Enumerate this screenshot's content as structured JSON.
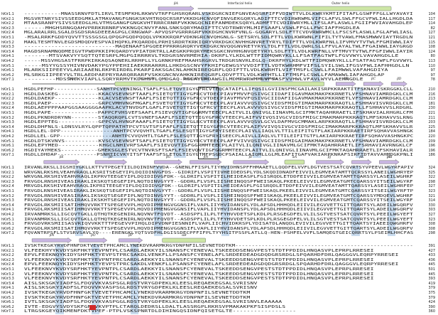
{
  "rows": [
    "hKir1.1",
    "hKir2.1",
    "hKir2.2",
    "hKir2.3",
    "hKir2.4",
    "hKir3.1",
    "hKir3.2",
    "hKir3.3",
    "hKir3.4",
    "hKir4.1",
    "hKir4.2",
    "hKir5.1",
    "hKir6.1",
    "hKir6.2",
    "hKir7.1"
  ],
  "colors": {
    "helix": "#cde6a6",
    "strand": "#c9b6e2",
    "shade": "#c9dcef",
    "mark": "#d22a2a"
  },
  "blocks": [
    {
      "ss_labels": [
        {
          "text": "βA",
          "kind": "strand"
        },
        {
          "text": "Interfacial helix",
          "kind": "title"
        },
        {
          "text": "Outer helix",
          "kind": "title"
        }
      ],
      "seqs": [
        "-----------MNASSRNVFDTLIRVLTESMFKHLRKWVVTRFFGHSRQRARLVSKDGRCNIEFGNVEAQSRFIFFVDIWTTVLDLKWRYKMTIFITAFLGSWFFFGLLWYAVAYI",
        "MGSVRTNRYSIVSSEEDGMKLATMAVANGFGNGKSKVHTRQQCRSRFVKKDGHCNVQFINVGEKGQRYLADIFTTCVDIRWRWMLVIFCLAFVLSWLFFGCVFWLIALLHGDLDA",
        "MTAASRANPYSIVSSEEDGLHLVTMSGANGFGNGKVHTRRRCRNRFVKKNGQCNIEFANMDEKSQRYLADMFTTCVDIRWRYMLLIFSLAFLASWLLFGIIFWVIAVAHGDLEP",
        "------MHGHSRNGQAHVPRRKRRNRFVKKNGQCNVYFANLSNKSQRYMADIFTTCVDTRWRYMLMIFSAAFLVSWLFFGLLFWCIAFFHGDLEA",
        "MGLARALRRLSGALDSGDSRAGDEEEAGPGLCRNGWAP-APVQSPVGRRRGRFVKKDGHCNVRFVNLG-GQGARYLSDLFTTCVDVRWRWMCLLFSCSFLASWLLFGLAFWLIASL",
        "-MSALRRKFGDDYQVVTTSSSGSGLQPQGPGQDPQQQLVPKKKRQRFVDKNGRCNVQHGNLG-SETSRYLSDLFTTLVDLKWRWNLFIFILTYTVAWLFMASMWWVIAYTRGDLN",
        "MAKLTESMTNVLEGDSMDQDVESPVAIHQPKLPKQARDDLPRHISRDRTKRKIQRYVRKDGKCNVHHGNVRETYRYLTDIFTTLVDLKWRFNLLIFVMVYTVTWLFFGMIWWLIAY",
        "---------------------------MAQENAAFSPGQEEPPRRRGRQRYVEKDGRCNVQQGNVRETYRYLTDLFTTLVDLQWRLSLLFFVLAYALTWLFFGAIWWLIAYGRGD",
        "MAGDSRNAMNQDMEIGVTPWDPKKIPKQARDYVPIATDRTRLLAEGKKPRQRYMEKSGKCNVHHGNVQETYRYLSDLFTTLVDLKWRFNLLVFTMVYTVTWLFFGFIWWLIAYIR",
        "-------MTSVAKVYYSQTTQTESRPLMGPGIRRRRVLTKDGRSNVRMEHIA-DKRFLYLKDLWTTFIDMQWRYKLLLFSATFAGTWFLFGVVWYLVAVAHGDLLE",
        "-----MSSVHGSASTFRRPKIRKAQSAQNERLRRHPLLYLGRNKPREFMAAHSRGRVLTRDGRSNVRLEGLQ-DKRFHYLKDLWTTFIDMQWRYKLLLFSATFAGTWFLFGVVWYL",
        "-----MSYYGSSYHIVNVDAKYPGYPPEHIIAEKRRARRRLLHKDGSCNVYFKHIFGEWGSYVVDIFTTLVDTKWRHMFVIFSLSYILSWLIFGSVFWLIAFHHGDLLN",
        "MLARKSIIPEEYVLARIAAENLRKPRIRDRLPKARFIAKSGACNLAHKNIREQGRFLQDIFTTLVDLKWRHTLVIFTMSFLCSWLLFAIMWWLVAFAHGDIYA",
        "MLSRKGIIPEEYVLTRLAEDPAEPRYRARQRRARFVSKKGNCNVAHKNIREQGRFLQDVFTTLVDLKWPHTLLIFTMSFLCSWLLFAMAWWLIAFAHGDLAP",
        "---------MDSSNCKVIAPLLSQRYRRMVTKDGHSTLQMDGAQ-RGLAYLRDAWGILMDMRWRWMMLVFSASFVVHWLVFAVLWYVLAEMNGDLE"
      ],
      "nums": [
        "104",
        "117",
        "114",
        "82",
        "127",
        "121",
        "115",
        "108",
        "124",
        "80",
        "113",
        "110",
        "97",
        "97",
        "78"
      ],
      "shade_cols": [
        [
          0.45,
          0.47
        ],
        [
          0.6,
          0.62
        ],
        [
          0.66,
          0.68
        ],
        [
          0.73,
          0.75
        ]
      ],
      "selbox": null,
      "strands": [
        [
          0.34,
          0.43
        ]
      ],
      "helices": [
        [
          0.68,
          0.93
        ]
      ],
      "line_regions": [
        [
          0.44,
          0.67
        ]
      ],
      "red_mark": null
    },
    {
      "ss_labels": [
        {
          "text": "Turret",
          "kind": "title"
        },
        {
          "text": "Pore helix",
          "kind": "title"
        },
        {
          "text": "Selectivity filter",
          "kind": "title"
        },
        {
          "text": "Inner helix",
          "kind": "title"
        },
        {
          "text": "βB",
          "kind": "strand"
        },
        {
          "text": "βC",
          "kind": "strand"
        },
        {
          "text": "βD",
          "kind": "strand"
        }
      ],
      "seqs": [
        "HGDLPEFHP-------------SANHTPCVENINGLTSAFLFSLETQVTIGYGFRCVTEQCATAIFLLIFQSILGVIINSFMCGAILAKISRPKKRAKTITFSKNAVISKRGGKLCLL",
        "HGDLDASKEG------------KKACVSEVNSFTAAFLFSIETQTTIGYGFRCVTDECPIAVFMVVFQSIVGCIIDAFIIGAVMAKMAKPKKRNETLVFSHNAVIAMRDGKLCLM",
        "HGDLDAEKP-------------KLACVSEVNSFTAAFLFSIETQTTIGYGFRCVTDECPIAVFMVVFQSIVGCIIDAFIIGAVMAKMAKPKKRNETLVFSHNAVIAMRDGKLCLM",
        "HGDLPAEP--------------GRPCVMHVNGFMGAFLFSVETQTTIGYGFRCVTEECPLAVIAVVVQSIVGCVIDSFMIGTIMAKMARPKKRAQTLLFSHHAVISVRDGKLCLM",
        "HGDLAEPPPPAAPGGSAAGGGGAAPKLACVTNVDGFLGAFLFSVETQTTIGYGFRCVTEECPLAVLAVVVQSIVGCVIDSFMIGTIMAKMARPKKRAQTLLFSHHAVVSLRDGRL",
        "HGDLPAPE--------------PAPPCFVHSVEFSAAFLFSIEVQVTIGFGGRMVTEECPLAITVLILQNIVGLIINAVMLGCIFMKTAQAHRRAETLIFSKHAVIALRHGRLCFM",
        "HGDLPKNDRDRYNN--------STAQQRQPLCVTSVNEFSAAFLFSIETQTTIGYGFRCVTEECPLAIFVVIVQSIVGCVIDSFMIGCIMAKMARPKKRAQTLMFSKHAVVSLRNG",
        "HGDLEPPTEG------------GPPCVLHVNGFAAAFLFSIETQTTIGYGLRCVTEECPLAVLAVVVQSVLGCVLDAFMVGCMMAKLARPKKRAQTLLFSHHAVISVRDGKLCLM",
        "HGDLDHFNLS-LDNSVLRYLQPPTQPPATHTPCVTSVTSFSFAFLFSIETQTTIGYGFRCVTEECPLAIFVVIVQSIVGCVIDSFMIGCIMAKMARPKKRAQTLMFSKHAVVSLR",
        "HGDLLEL-DPP----------------ANHTPCVVQVHTLTGAFLFSLESQTTIGYGFRYISEECPLAIVLLIAQLVLTTILEIFITGTFLAKIARPKKRAETIRFSQHAVVASHNGK",
        "HGDLLEL-GPP----------------ANHTPCVVQVHTLTGAFLFSLESQTTIGYGFRYISEECPLAIVLLIAQLVLTTILEIFITGTFLAKIARPKKRAETIRFSQHAVVASHNGKPC",
        "HGDLDTSKVNVS----------KVSCVSEVNSFTSAFLFSIETQTTIGYGYRCVTEECPLAFFVIVVQSIVGCIIDSFMIGAIMAKMAKPKKRNETLVFSHNAVIAMRDGKLCLM",
        "HGDLEPYMED------------KHGCLNHIVRFSAAFLFSIEVQVTIGFGGRMMTEECPLAITVLILQNIVGLIINAVMLGCIFMKTAQAHRRAETLIFSRHAVIAVRNGKLCF",
        "HGDIYAYMEKS-----------GMEKSGLESTVCVTNVRSFTSAFLFSIEVQVTIGFGGRMMTEECPLAITVLILQNIVGLIINAVMLGCIFMKTAQAHRRAETLIFSKHAVIALR",
        "HGDLLDHDAP------------PSNHTICVKYITSFTAAFSFSLETQLTIGYGTMFPSGDCPSAIALLAIQMLLGLMLEAFITGAFVAKIARPKNRAFSIRFTDTAVVAHMDGKPNLI"
      ],
      "nums": [
        "210",
        "216",
        "213",
        "181",
        "230",
        "221",
        "211",
        "203",
        "225",
        "184",
        "220",
        "209",
        "196",
        "196",
        "186"
      ],
      "shade_cols": [
        [
          0.2,
          0.26
        ],
        [
          0.38,
          0.41
        ],
        [
          0.48,
          0.5
        ],
        [
          0.58,
          0.6
        ],
        [
          0.84,
          0.86
        ]
      ],
      "selbox": [
        0.44,
        0.49
      ],
      "strands": [
        [
          0.79,
          0.84
        ],
        [
          0.86,
          0.91
        ],
        [
          0.93,
          0.97
        ]
      ],
      "helices": [
        [
          0.23,
          0.4
        ],
        [
          0.49,
          0.76
        ]
      ],
      "line_regions": [
        [
          0.02,
          0.23
        ],
        [
          0.4,
          0.49
        ]
      ],
      "red_mark": null
    },
    {
      "ss_labels": [
        {
          "text": "βE",
          "kind": "strand"
        },
        {
          "text": "βF",
          "kind": "strand"
        },
        {
          "text": "βG",
          "kind": "strand"
        },
        {
          "text": "βH",
          "kind": "strand"
        },
        {
          "text": "βI",
          "kind": "strand"
        },
        {
          "text": "αA",
          "kind": "helix"
        },
        {
          "text": "βJ",
          "kind": "strand"
        },
        {
          "text": "βK",
          "kind": "strand"
        },
        {
          "text": "βL",
          "kind": "strand"
        },
        {
          "text": "βM",
          "kind": "strand"
        }
      ],
      "seqs": [
        "IRVANLRKSLLIGSHIYGKLLKTTVTPEGETIILDQININFVVDA--GNENLFFISPLTIYHVIDHNSPFFHMAAETLLQQDFELVVFLDGTVESTSATCQVRTSYVPEEVLWGYRFAPIV",
        "WRVGNLRKSHLVEAHVRAQLLKSRITSEGEYIPLDQIDINVGFDS--GIDRIFLVSPITIVHEIDEDSPLYDLSKQDIDNADFEIVVILEGMVEATAMTTQCRSSYLANEILWGHRYEP",
        "WRVGNLRKSHIVEAHVRAQLIKPRVTEEGEYIPLDQIDIDVGFDK--GLDRIFLVSPITILHEIDEASPLFGISRQDLETDDFEIVVILEGMVEATAMTTQARSSYLASEILWGHRF",
        "FRVGDLRNSHIVEASIRAKLIKSKQTSEGEFIPLNQTDINVGYYT--GDDRLFLVSPLIISHEINQQSPFWEISKAQLPKEELEIVVILEGMVEATGMTCQARSSYITSEILWGYRF",
        "MRVGDLRKSHIVEAHVRAQLIKPRITEEGEYIPLDQIDIDVGFDK--GLDRIFLVSPITILHEIDEASPLFGISRQDLETDDFEIVVILEGMVEATAMTTQARSSYLASEILWGHRFEP",
        "FRVGDLRNSHIVEASIRAKLIKSKQTSEGEFIPLNQTDINVGYYT--GDDRLFLVSPLIISHEINQQSPFWEISKAQLPKEELEIVVILEGMVEATGMTCQARSSYITSEILWGYRFTP",
        "FRVGDLRNSHIVEASIRAKLIKSKQTSEGEFIPLNQTDINVGYYT--GDDRLFLVSPLIISHEINQQSPFWEISKAQLPKEELEIVVILEGMVEATGMTCQARSSYMDQEVLWGHRF",
        "FRVGDLRNSHIVEASIRAKLIKSKHTSEGEFIPLNQTDINVGYYT--GDDRLFLVSPLIISHEINQQSPFWEISKAQLPKEELEIVVILEGMVEATGMTCQARSSYITSEILWGYRF",
        "FRVGDLRKSMIISATIHMQVVRKTTSPEGEVVPLHQVDIPMENGVGGNSIFLVAPLIIYHVIDANSPLYDLAPSDLHHHQDLEIIVILEGVVETTGITTQARTSYLADEILWGQRFV",
        "FRVGDLRKSMIISATIHMQVVRKTTSPEGEVVPLHQVDIPMENGVGGNSIFLVAPLIIYHVIDANSPLYDLAPSDLHHHQDLEIIVILEGVVETTGITTQARTSYLADEILWGQRFV",
        "IRVANMRKSLLIGCQVTGKLLQTHQTKEGENIRLNQVNVTFQVDT--ASDSPFLILPLTFYHVVDETSPLKDLPLRSGEGDFELVLILSGTVESTSATCQVRTSYLPEEILWGYEFT",
        "IRVANMRKSLLIGCQVTGKLLQTHQTKEGENIRLNQVNVTFQVDT--ASDSPFLILPLTFYHVVDETSPLKDLPLRSGEGDFELVLILSGTVESTSATCQVRTSYLPEEILWGYEFT",
        "FRVGDVRKSMIISASVRIQVVKKTTTPEGEVVPIHQLDIPVDNPIESNNIFLVAPLIICHVIDKRSPLYDISATDLANQDLEVIVILEGVVETTGITTQARTSYIAEEIQWGHRFV",
        "FRVGDLRKSMIISATIHMQVVRKTTSPEGEVVPLHQVDIPMENGVGGNSIFLVAPLIIYHVIDANSPLYDLAPSDLHHHQDLEIIVILEGVVETTGITTQARTSYLADEILWGQRFV",
        "FQVANTRPSFLSTVSRVSAVLYQ----ERENGKLYQTSVDFHLDGISSDECPFFIFPLTYYHSITPSSPLATLLQ-HEN-PSHFELVVFLSAMQEGTGEICQRRTSYLPSEIMLHHCFAS"
      ],
      "nums": [
        "324",
        "325",
        "322",
        "298",
        "327",
        "323",
        "321",
        "314",
        "330",
        "303",
        "327",
        "323",
        "308",
        "308",
        "298"
      ],
      "shade_cols": [
        [
          0.13,
          0.15
        ],
        [
          0.33,
          0.35
        ],
        [
          0.5,
          0.52
        ],
        [
          0.83,
          0.85
        ],
        [
          0.92,
          0.94
        ]
      ],
      "selbox": null,
      "strands": [
        [
          0.05,
          0.14
        ],
        [
          0.18,
          0.26
        ],
        [
          0.33,
          0.4
        ],
        [
          0.42,
          0.5
        ],
        [
          0.53,
          0.62
        ],
        [
          0.74,
          0.81
        ],
        [
          0.83,
          0.88
        ],
        [
          0.9,
          0.95
        ]
      ],
      "helices": [
        [
          0.66,
          0.71
        ]
      ],
      "line_regions": [],
      "red_mark": null
    },
    {
      "ss_labels": [
        {
          "text": "βN",
          "kind": "strand"
        },
        {
          "text": "βO",
          "kind": "strand"
        },
        {
          "text": "βP",
          "kind": "strand"
        },
        {
          "text": "αB",
          "kind": "helix"
        }
      ],
      "seqs": [
        "IVSKTKEGKYRVDFHNFDKTVEVETPHCAMCLYNEKDVRARMKRGYDNPNFILSEVNETDDTKM------------------------------------------------------",
        "VLFEEKHYYKVDYSRFHKTYEVPNTPLCSARDLAEKKYILSNANSFCYENEVALTSKEEDDSENGVPESTSTDTPPDIDLHNQASVPLEPRPLRRESEI",
        "EPVLFEEKNQYKIDYSHFHKTYEVPSTPRCSAKDLVENKFLLPSANSFCYENELAFLSRDEEDEADGDQDGRSRDGLSPQARHDFDRLQAGGGVLEQRPYRRESEI",
        "VLFEEKNVYKVDYSRFHKTYEVPNTPRCSARDLAEKKYILSNANSFCYENEVALTSKEEDDSENGVPESTSTDTPPDIDLHNQASVPLEPRPLRRESEI",
        "EPVLFEEKNQYKIDYSHFHKTYEVPSTPRCSAKDLVENKFLLPSANSFCYENELAFLSRDEEDEADGDQDGRSRDGLSPQARHDFDRLQAGGGVLEQRPYRRESEI",
        "VLFEEKNVYKVDYSRFHKTYEVPNTPLCSARDLAEKKYILSNANSFCYENEVALTSKEEDDSENGVPESTSTDTPPDIDLHNQASVPLEPRPLRRESEI",
        "VLFEEKNVYKVDYSRFHKTYEVPNTPLCSARDLAEKKYILSNANSFCYENEVALTSKEEDDSENGVPESTSTDTPPDIDLHNQASVPLEPRPLRRESEI",
        "VLFEEKNVYKVDYSRFHKTYEVPNTPLCSARDLAEKKYILSNANSFCYENEVALTSKEEDDSENGVPESTSTDTPPDIDLHNQASVPLEPRPLRRESEI",
        "AISLSKSGKYIADFSLFDQVVKVASPSGLRDSTVRYGDPEKLKLEESLREQAEKEGSALSVRISNV",
        "AISLSKSGKYIADFSLFDQVVKVASPSGLRDSTVRYGDPEKLKLEESLREQAEKEGSALSVRISNV",
        "IVSKTKEGKYRVDFHNFGKTVEVETPHCAMCLYNEKDVRARMKRGYDNPNFILSEVNETDDTKM",
        "IVSKTKEGKYRVDFHNFGKTVEVETPHCAMCLYNEKDVRARMKRGYDNPNFILSEVNETDDTKM",
        "IVTLSKSGKYIADFSLFDQVVKVASPGGLRDSTVRYGDPEKLKLEESLREQAEKEGSALSVRISNVLEAAAAA",
        "IVTE-EDGVYSVDYSKFGNTVKVPTPLCTARQLDEDRSLLDALTLASSRGPLRKRSVPMAKAKPKFSISPDSLS",
        "LTRGSKGEYQIKMENFDKTVPEF-PTPLVSKSPNRTDLDIHINGQSIDNFQISETGLTE------------------"
      ],
      "nums": [
        "391",
        "427",
        "433",
        "436",
        "445",
        "501",
        "445",
        "393",
        "419",
        "379",
        "375",
        "379",
        "424",
        "390",
        "360"
      ],
      "shade_cols": [
        [
          0.08,
          0.1
        ],
        [
          0.17,
          0.19
        ],
        [
          0.27,
          0.29
        ]
      ],
      "selbox": null,
      "strands": [
        [
          0.02,
          0.12
        ],
        [
          0.14,
          0.21
        ],
        [
          0.24,
          0.3
        ]
      ],
      "helices": [
        [
          0.35,
          0.46
        ]
      ],
      "line_regions": [],
      "red_mark": {
        "row": 13
      }
    }
  ]
}
